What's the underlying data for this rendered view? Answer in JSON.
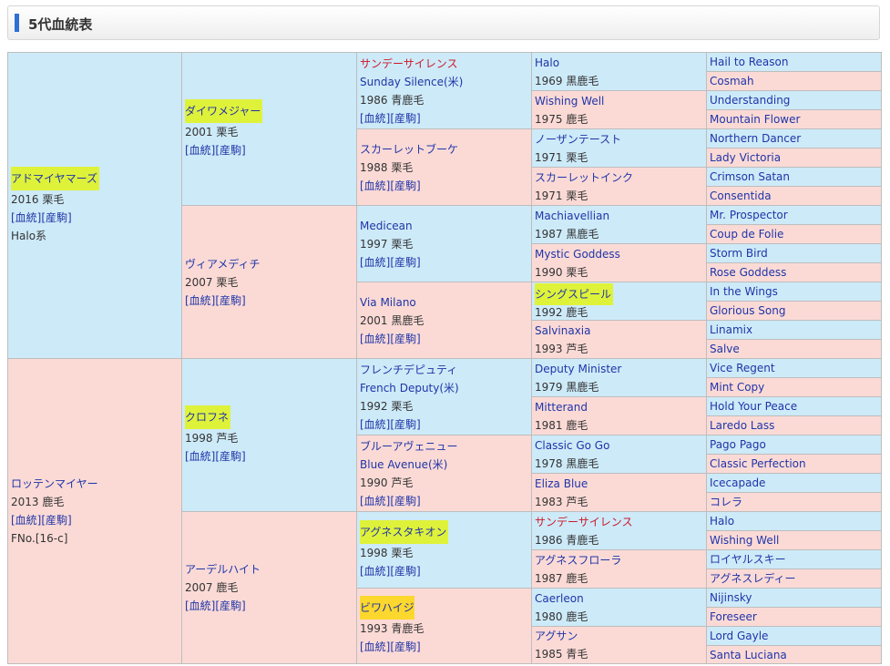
{
  "header": {
    "title": "5代血統表"
  },
  "g1": [
    {
      "name": "アドマイヤマーズ",
      "year": "2016 栗毛",
      "links": [
        "[血統]",
        "[産駒]"
      ],
      "extra": "Halo系"
    },
    {
      "name": "ロッテンマイヤー",
      "year": "2013 鹿毛",
      "links": [
        "[血統]",
        "[産駒]"
      ],
      "extra": "FNo.[16-c]"
    }
  ],
  "g2": [
    {
      "name": "ダイワメジャー",
      "year": "2001 栗毛",
      "links": [
        "[血統]",
        "[産駒]"
      ]
    },
    {
      "name": "ヴィアメディチ",
      "year": "2007 栗毛",
      "links": [
        "[血統]",
        "[産駒]"
      ]
    },
    {
      "name": "クロフネ",
      "year": "1998 芦毛",
      "links": [
        "[血統]",
        "[産駒]"
      ]
    },
    {
      "name": "アーデルハイト",
      "year": "2007 鹿毛",
      "links": [
        "[血統]",
        "[産駒]"
      ]
    }
  ],
  "g3": [
    {
      "name": "サンデーサイレンス",
      "eng": "Sunday Silence(米)",
      "year": "1986 青鹿毛",
      "links": [
        "[血統]",
        "[産駒]"
      ]
    },
    {
      "name": "スカーレットブーケ",
      "year": "1988 栗毛",
      "links": [
        "[血統]",
        "[産駒]"
      ]
    },
    {
      "name": "Medicean",
      "year": "1997 栗毛",
      "links": [
        "[血統]",
        "[産駒]"
      ]
    },
    {
      "name": "Via Milano",
      "year": "2001 黒鹿毛",
      "links": [
        "[血統]",
        "[産駒]"
      ]
    },
    {
      "name": "フレンチデピュティ",
      "eng": "French Deputy(米)",
      "year": "1992 栗毛",
      "links": [
        "[血統]",
        "[産駒]"
      ]
    },
    {
      "name": "ブルーアヴェニュー",
      "eng": "Blue Avenue(米)",
      "year": "1990 芦毛",
      "links": [
        "[血統]",
        "[産駒]"
      ]
    },
    {
      "name": "アグネスタキオン",
      "year": "1998 栗毛",
      "links": [
        "[血統]",
        "[産駒]"
      ]
    },
    {
      "name": "ビワハイジ",
      "year": "1993 青鹿毛",
      "links": [
        "[血統]",
        "[産駒]"
      ]
    }
  ],
  "g4": [
    {
      "name": "Halo",
      "year": "1969 黒鹿毛"
    },
    {
      "name": "Wishing Well",
      "year": "1975 鹿毛"
    },
    {
      "name": "ノーザンテースト",
      "year": "1971 栗毛"
    },
    {
      "name": "スカーレットインク",
      "year": "1971 栗毛"
    },
    {
      "name": "Machiavellian",
      "year": "1987 黒鹿毛"
    },
    {
      "name": "Mystic Goddess",
      "year": "1990 栗毛"
    },
    {
      "name": "シングスピール",
      "year": "1992 鹿毛"
    },
    {
      "name": "Salvinaxia",
      "year": "1993 芦毛"
    },
    {
      "name": "Deputy Minister",
      "year": "1979 黒鹿毛"
    },
    {
      "name": "Mitterand",
      "year": "1981 鹿毛"
    },
    {
      "name": "Classic Go Go",
      "year": "1978 黒鹿毛"
    },
    {
      "name": "Eliza Blue",
      "year": "1983 芦毛"
    },
    {
      "name": "サンデーサイレンス",
      "year": "1986 青鹿毛"
    },
    {
      "name": "アグネスフローラ",
      "year": "1987 鹿毛"
    },
    {
      "name": "Caerleon",
      "year": "1980 鹿毛"
    },
    {
      "name": "アグサン",
      "year": "1985 青毛"
    }
  ],
  "g5": [
    "Hail to Reason",
    "Cosmah",
    "Understanding",
    "Mountain Flower",
    "Northern Dancer",
    "Lady Victoria",
    "Crimson Satan",
    "Consentida",
    "Mr. Prospector",
    "Coup de Folie",
    "Storm Bird",
    "Rose Goddess",
    "In the Wings",
    "Glorious Song",
    "Linamix",
    "Salve",
    "Vice Regent",
    "Mint Copy",
    "Hold Your Peace",
    "Laredo Lass",
    "Pago Pago",
    "Classic Perfection",
    "Icecapade",
    "コレラ",
    "Halo",
    "Wishing Well",
    "ロイヤルスキー",
    "アグネスレディー",
    "Nijinsky",
    "Foreseer",
    "Lord Gayle",
    "Santa Luciana"
  ],
  "colors": {
    "male_bg": "#cdeaf8",
    "female_bg": "#fbdad6",
    "link": "#1f35a8",
    "red_name": "#cc1a2b",
    "highlight": "#dff23a",
    "highlight_orange": "#fcd72d"
  }
}
